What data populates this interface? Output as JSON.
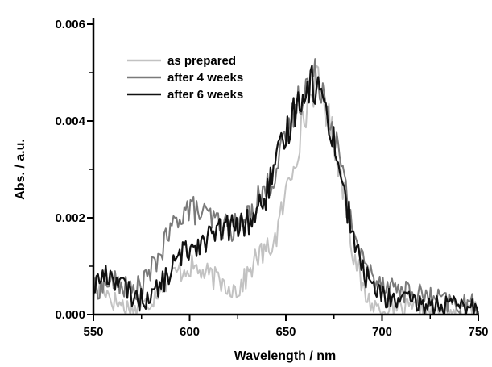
{
  "chart_data": {
    "type": "line",
    "xlabel": "Wavelength / nm",
    "ylabel": "Abs. / a.u.",
    "xlim": [
      550,
      750
    ],
    "ylim": [
      0,
      0.006
    ],
    "x_ticks": [
      550,
      600,
      650,
      700,
      750
    ],
    "x_tick_labels": [
      "550",
      "600",
      "650",
      "700",
      "750"
    ],
    "y_ticks": [
      0,
      0.002,
      0.004,
      0.006
    ],
    "y_tick_labels": [
      "0.000",
      "0.002",
      "0.004",
      "0.006"
    ],
    "grid": false,
    "legend_position": "top-left",
    "series": [
      {
        "name": "as prepared",
        "color": "#c2c2c2",
        "x": [
          550,
          555,
          560,
          565,
          570,
          575,
          580,
          585,
          590,
          595,
          600,
          605,
          610,
          615,
          620,
          625,
          630,
          635,
          640,
          645,
          650,
          655,
          660,
          663,
          666,
          670,
          675,
          680,
          685,
          690,
          695,
          700,
          705,
          710,
          720,
          730,
          740,
          750
        ],
        "y": [
          0.0004,
          0.0006,
          0.0003,
          0.0002,
          0.0001,
          0.00015,
          0.0003,
          0.0006,
          0.0008,
          0.0009,
          0.001,
          0.0009,
          0.0008,
          0.0007,
          0.0006,
          0.0005,
          0.0008,
          0.0012,
          0.0013,
          0.0016,
          0.0025,
          0.0033,
          0.0041,
          0.0046,
          0.0048,
          0.0044,
          0.0036,
          0.0026,
          0.0013,
          0.0005,
          0.0002,
          0.0001,
          0.0001,
          0.0001,
          0.0001,
          5e-05,
          5e-05,
          5e-05
        ]
      },
      {
        "name": "after 4 weeks",
        "color": "#7a7a7a",
        "x": [
          550,
          555,
          560,
          565,
          570,
          575,
          580,
          585,
          590,
          595,
          600,
          605,
          610,
          615,
          620,
          625,
          630,
          635,
          640,
          645,
          650,
          655,
          660,
          663,
          667,
          670,
          675,
          680,
          685,
          690,
          695,
          700,
          705,
          710,
          720,
          730,
          740,
          750
        ],
        "y": [
          0.0005,
          0.0006,
          0.0007,
          0.0006,
          0.0005,
          0.0006,
          0.0009,
          0.0013,
          0.0017,
          0.0021,
          0.0022,
          0.0021,
          0.002,
          0.0019,
          0.0018,
          0.0018,
          0.002,
          0.0024,
          0.0026,
          0.003,
          0.0036,
          0.0043,
          0.0047,
          0.0049,
          0.0049,
          0.0046,
          0.0038,
          0.0028,
          0.0018,
          0.0011,
          0.0008,
          0.0007,
          0.0006,
          0.0005,
          0.0004,
          0.0003,
          0.0002,
          0.0002
        ]
      },
      {
        "name": "after 6 weeks",
        "color": "#111111",
        "x": [
          550,
          555,
          560,
          565,
          570,
          575,
          580,
          585,
          590,
          595,
          600,
          605,
          610,
          615,
          620,
          625,
          630,
          635,
          640,
          645,
          650,
          655,
          660,
          663,
          666,
          670,
          675,
          680,
          685,
          690,
          695,
          700,
          705,
          710,
          720,
          730,
          740,
          750
        ],
        "y": [
          0.0006,
          0.0008,
          0.0008,
          0.0006,
          0.0004,
          0.0003,
          0.0004,
          0.0006,
          0.0009,
          0.0012,
          0.0014,
          0.0015,
          0.0016,
          0.0017,
          0.0018,
          0.0018,
          0.0019,
          0.0021,
          0.0025,
          0.0031,
          0.0037,
          0.0043,
          0.0047,
          0.0048,
          0.0047,
          0.0044,
          0.0036,
          0.0026,
          0.0016,
          0.0009,
          0.0006,
          0.0004,
          0.0003,
          0.0003,
          0.0002,
          0.0002,
          0.00015,
          0.0001
        ]
      }
    ]
  }
}
